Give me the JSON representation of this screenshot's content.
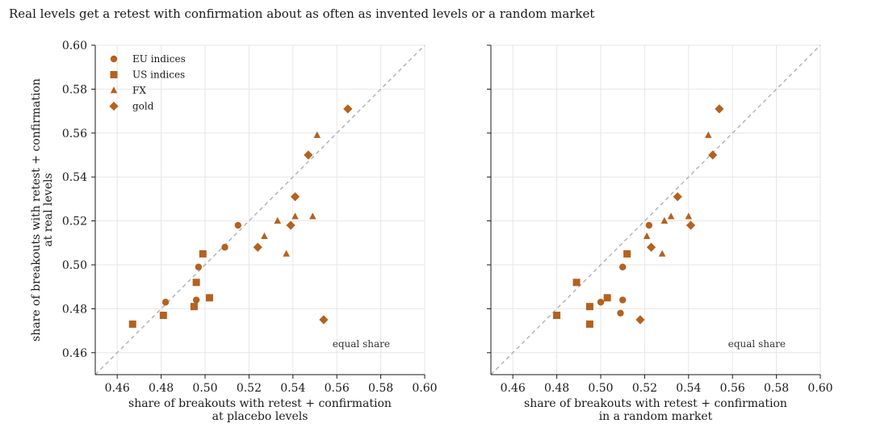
{
  "title": "Real levels get a retest with confirmation about as often as invented levels or a random market",
  "colors": {
    "marker": "#b5611f",
    "diagonal": "#aaaaaa",
    "grid": "#e6e6e6",
    "axis": "#1a1a1a"
  },
  "chart_data": [
    {
      "type": "scatter",
      "xlabel": [
        "share of breakouts with retest + confirmation",
        "at placebo levels"
      ],
      "ylabel": [
        "share of breakouts with retest + confirmation",
        "at real levels"
      ],
      "xlim": [
        0.45,
        0.6
      ],
      "ylim": [
        0.45,
        0.6
      ],
      "ticks": [
        "0.46",
        "0.48",
        "0.50",
        "0.52",
        "0.54",
        "0.56",
        "0.58",
        "0.60"
      ],
      "grid": true,
      "reference_line": "y = x",
      "annotation": "equal share",
      "legend": "top-left",
      "series": [
        {
          "name": "EU indices",
          "marker": "circle",
          "points": [
            [
              0.482,
              0.483
            ],
            [
              0.496,
              0.484
            ],
            [
              0.497,
              0.499
            ],
            [
              0.509,
              0.508
            ],
            [
              0.515,
              0.518
            ]
          ]
        },
        {
          "name": "US indices",
          "marker": "square",
          "points": [
            [
              0.467,
              0.473
            ],
            [
              0.481,
              0.477
            ],
            [
              0.495,
              0.481
            ],
            [
              0.496,
              0.492
            ],
            [
              0.499,
              0.505
            ],
            [
              0.502,
              0.485
            ]
          ]
        },
        {
          "name": "FX",
          "marker": "triangle",
          "points": [
            [
              0.527,
              0.513
            ],
            [
              0.533,
              0.52
            ],
            [
              0.537,
              0.505
            ],
            [
              0.541,
              0.522
            ],
            [
              0.549,
              0.522
            ],
            [
              0.551,
              0.559
            ]
          ]
        },
        {
          "name": "gold",
          "marker": "diamond",
          "points": [
            [
              0.524,
              0.508
            ],
            [
              0.539,
              0.518
            ],
            [
              0.541,
              0.531
            ],
            [
              0.547,
              0.55
            ],
            [
              0.554,
              0.475
            ],
            [
              0.565,
              0.571
            ]
          ]
        }
      ]
    },
    {
      "type": "scatter",
      "xlabel": [
        "share of breakouts with retest + confirmation",
        "in a random market"
      ],
      "ylabel": [],
      "xlim": [
        0.45,
        0.6
      ],
      "ylim": [
        0.45,
        0.6
      ],
      "ticks": [
        "0.46",
        "0.48",
        "0.50",
        "0.52",
        "0.54",
        "0.56",
        "0.58",
        "0.60"
      ],
      "grid": true,
      "reference_line": "y = x",
      "annotation": "equal share",
      "series": [
        {
          "name": "EU indices",
          "marker": "circle",
          "points": [
            [
              0.5,
              0.483
            ],
            [
              0.509,
              0.478
            ],
            [
              0.51,
              0.484
            ],
            [
              0.51,
              0.499
            ],
            [
              0.522,
              0.518
            ]
          ]
        },
        {
          "name": "US indices",
          "marker": "square",
          "points": [
            [
              0.48,
              0.477
            ],
            [
              0.489,
              0.492
            ],
            [
              0.495,
              0.481
            ],
            [
              0.495,
              0.473
            ],
            [
              0.503,
              0.485
            ],
            [
              0.512,
              0.505
            ]
          ]
        },
        {
          "name": "FX",
          "marker": "triangle",
          "points": [
            [
              0.521,
              0.513
            ],
            [
              0.528,
              0.505
            ],
            [
              0.529,
              0.52
            ],
            [
              0.532,
              0.522
            ],
            [
              0.54,
              0.522
            ],
            [
              0.549,
              0.559
            ]
          ]
        },
        {
          "name": "gold",
          "marker": "diamond",
          "points": [
            [
              0.518,
              0.475
            ],
            [
              0.523,
              0.508
            ],
            [
              0.535,
              0.531
            ],
            [
              0.541,
              0.518
            ],
            [
              0.551,
              0.55
            ],
            [
              0.554,
              0.571
            ]
          ]
        }
      ]
    }
  ]
}
